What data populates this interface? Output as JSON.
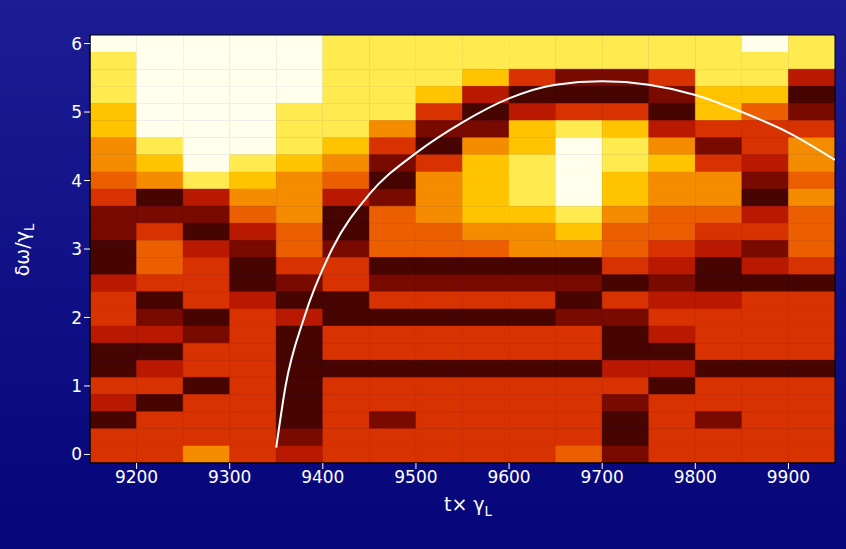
{
  "chart_data": {
    "type": "heatmap",
    "x_label": "t× γL",
    "y_label": "δω/γL",
    "xlim": [
      9150,
      9950
    ],
    "xticks": [
      9200,
      9300,
      9400,
      9500,
      9600,
      9700,
      9800,
      9900
    ],
    "ylim": [
      -0.125,
      6.125
    ],
    "yticks": [
      0,
      1,
      2,
      3,
      4,
      5,
      6
    ],
    "heatmap": {
      "x": [
        9175,
        9225,
        9275,
        9325,
        9375,
        9425,
        9475,
        9525,
        9575,
        9625,
        9675,
        9725,
        9775,
        9825,
        9875,
        9925
      ],
      "y": [
        6,
        5.75,
        5.5,
        5.25,
        5,
        4.75,
        4.5,
        4.25,
        4,
        3.75,
        3.5,
        3.25,
        3,
        2.75,
        2.5,
        2.25,
        2,
        1.75,
        1.5,
        1.25,
        1,
        0.75,
        0.5,
        0.25,
        0
      ],
      "z": [
        [
          9,
          9,
          9,
          9,
          9,
          8,
          8,
          8,
          8,
          8,
          8,
          8,
          8,
          8,
          9,
          8
        ],
        [
          8,
          9,
          9,
          9,
          9,
          8,
          8,
          8,
          8,
          8,
          8,
          8,
          8,
          8,
          8,
          8
        ],
        [
          8,
          9,
          9,
          9,
          9,
          8,
          8,
          8,
          7,
          4,
          2,
          2,
          4,
          8,
          8,
          3
        ],
        [
          8,
          9,
          9,
          9,
          9,
          8,
          8,
          7,
          3,
          1,
          1,
          1,
          2,
          7,
          7,
          1
        ],
        [
          7,
          9,
          9,
          9,
          8,
          8,
          8,
          4,
          1,
          3,
          4,
          4,
          1,
          7,
          5,
          2
        ],
        [
          7,
          9,
          9,
          9,
          8,
          8,
          6,
          2,
          2,
          7,
          8,
          7,
          3,
          4,
          4,
          4
        ],
        [
          6,
          8,
          9,
          9,
          8,
          7,
          4,
          1,
          6,
          7,
          9,
          8,
          6,
          2,
          4,
          6
        ],
        [
          6,
          7,
          9,
          8,
          7,
          6,
          2,
          4,
          7,
          8,
          9,
          8,
          7,
          4,
          3,
          6
        ],
        [
          5,
          6,
          8,
          7,
          6,
          5,
          1,
          6,
          7,
          8,
          9,
          7,
          6,
          6,
          2,
          5
        ],
        [
          4,
          1,
          3,
          6,
          6,
          3,
          2,
          6,
          7,
          8,
          9,
          7,
          6,
          6,
          1,
          6
        ],
        [
          2,
          2,
          2,
          5,
          6,
          1,
          5,
          6,
          7,
          7,
          8,
          6,
          5,
          5,
          3,
          5
        ],
        [
          2,
          4,
          1,
          3,
          5,
          1,
          5,
          5,
          6,
          6,
          7,
          5,
          5,
          4,
          4,
          5
        ],
        [
          1,
          5,
          3,
          2,
          5,
          2,
          5,
          5,
          5,
          6,
          6,
          5,
          4,
          3,
          2,
          5
        ],
        [
          1,
          5,
          4,
          1,
          4,
          4,
          1,
          1,
          1,
          1,
          1,
          4,
          3,
          1,
          3,
          4
        ],
        [
          3,
          4,
          4,
          1,
          2,
          4,
          2,
          2,
          2,
          2,
          2,
          1,
          2,
          1,
          1,
          1
        ],
        [
          4,
          1,
          4,
          3,
          1,
          1,
          4,
          4,
          4,
          4,
          1,
          4,
          3,
          3,
          4,
          4
        ],
        [
          4,
          2,
          1,
          4,
          3,
          1,
          1,
          1,
          1,
          1,
          2,
          2,
          4,
          4,
          4,
          4
        ],
        [
          3,
          3,
          2,
          4,
          1,
          4,
          4,
          4,
          4,
          4,
          4,
          1,
          3,
          4,
          4,
          4
        ],
        [
          1,
          1,
          4,
          4,
          1,
          4,
          4,
          4,
          4,
          4,
          4,
          1,
          1,
          4,
          4,
          4
        ],
        [
          1,
          3,
          4,
          4,
          1,
          1,
          1,
          1,
          1,
          1,
          1,
          3,
          3,
          1,
          1,
          1
        ],
        [
          4,
          4,
          1,
          4,
          1,
          4,
          4,
          4,
          4,
          4,
          4,
          4,
          1,
          4,
          4,
          4
        ],
        [
          3,
          1,
          4,
          4,
          1,
          4,
          4,
          4,
          4,
          4,
          4,
          2,
          4,
          4,
          4,
          4
        ],
        [
          1,
          4,
          4,
          4,
          1,
          4,
          2,
          4,
          4,
          4,
          4,
          1,
          4,
          2,
          4,
          4
        ],
        [
          4,
          4,
          4,
          4,
          2,
          4,
          4,
          4,
          4,
          4,
          4,
          1,
          4,
          4,
          4,
          4
        ],
        [
          4,
          4,
          6,
          4,
          3,
          4,
          4,
          4,
          4,
          4,
          5,
          2,
          4,
          4,
          4,
          4
        ]
      ],
      "zlim": [
        0,
        9
      ]
    },
    "series": [
      {
        "type": "line",
        "color": "#ffffff",
        "x": [
          9350,
          9360,
          9380,
          9410,
          9450,
          9500,
          9550,
          9600,
          9650,
          9700,
          9750,
          9800,
          9850,
          9900,
          9950
        ],
        "values": [
          0.1,
          1,
          2,
          3,
          3.8,
          4.4,
          4.85,
          5.2,
          5.4,
          5.45,
          5.4,
          5.25,
          5,
          4.7,
          4.3
        ]
      }
    ]
  }
}
